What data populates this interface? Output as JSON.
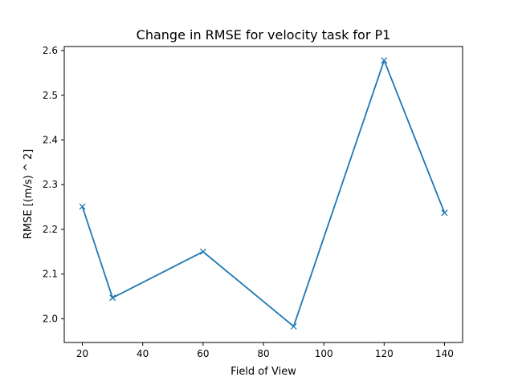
{
  "chart_data": {
    "type": "line",
    "title": "Change in RMSE for velocity task for P1",
    "xlabel": "Field of View",
    "ylabel": "RMSE [(m/s) ^ 2]",
    "x": [
      20,
      30,
      60,
      90,
      120,
      140
    ],
    "y": [
      2.251,
      2.047,
      2.15,
      1.983,
      2.578,
      2.237
    ],
    "xlim": [
      14,
      146
    ],
    "ylim": [
      1.947,
      2.609
    ],
    "xticks": [
      20,
      40,
      60,
      80,
      100,
      120,
      140
    ],
    "yticks": [
      2.0,
      2.1,
      2.2,
      2.3,
      2.4,
      2.5,
      2.6
    ],
    "ytick_labels": [
      "2.0",
      "2.1",
      "2.2",
      "2.3",
      "2.4",
      "2.5",
      "2.6"
    ],
    "marker": "x",
    "grid": false,
    "color": "#1f77b4"
  }
}
